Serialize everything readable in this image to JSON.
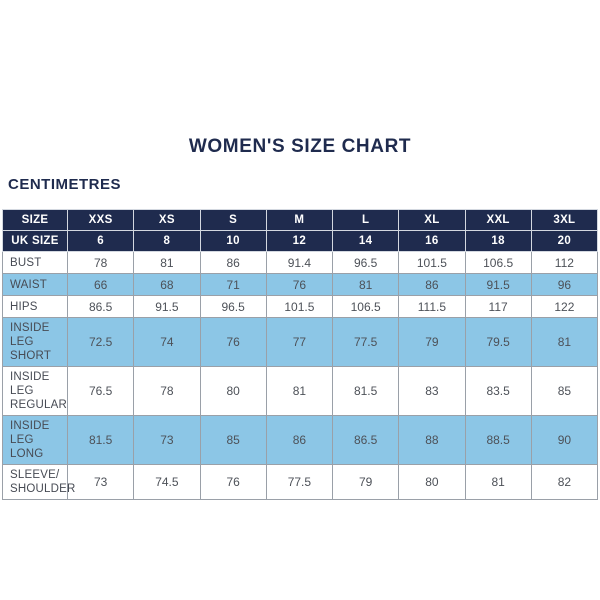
{
  "page": {
    "title": "WOMEN'S SIZE CHART",
    "unit_label": "CENTIMETRES"
  },
  "colors": {
    "header_navy": "#1f2b4e",
    "shaded_row_blue": "#8cc6e6",
    "body_border_gray": "#9aa0a8",
    "body_text_gray": "#4d5158",
    "header_text": "#ffffff",
    "background": "#ffffff"
  },
  "table": {
    "header_rows": [
      {
        "label": "SIZE",
        "values": [
          "XXS",
          "XS",
          "S",
          "M",
          "L",
          "XL",
          "XXL",
          "3XL"
        ]
      },
      {
        "label": "UK SIZE",
        "values": [
          "6",
          "8",
          "10",
          "12",
          "14",
          "16",
          "18",
          "20"
        ]
      }
    ],
    "rows": [
      {
        "label": "BUST",
        "label_lines": [
          "BUST"
        ],
        "shaded": false,
        "values": [
          "78",
          "81",
          "86",
          "91.4",
          "96.5",
          "101.5",
          "106.5",
          "112"
        ]
      },
      {
        "label": "WAIST",
        "label_lines": [
          "WAIST"
        ],
        "shaded": true,
        "values": [
          "66",
          "68",
          "71",
          "76",
          "81",
          "86",
          "91.5",
          "96"
        ]
      },
      {
        "label": "HIPS",
        "label_lines": [
          "HIPS"
        ],
        "shaded": false,
        "values": [
          "86.5",
          "91.5",
          "96.5",
          "101.5",
          "106.5",
          "111.5",
          "117",
          "122"
        ]
      },
      {
        "label": "INSIDE LEG SHORT",
        "label_lines": [
          "INSIDE LEG",
          "SHORT"
        ],
        "shaded": true,
        "values": [
          "72.5",
          "74",
          "76",
          "77",
          "77.5",
          "79",
          "79.5",
          "81"
        ]
      },
      {
        "label": "INSIDE LEG REGULAR",
        "label_lines": [
          "INSIDE LEG",
          "REGULAR"
        ],
        "shaded": false,
        "values": [
          "76.5",
          "78",
          "80",
          "81",
          "81.5",
          "83",
          "83.5",
          "85"
        ]
      },
      {
        "label": "INSIDE LEG LONG",
        "label_lines": [
          "INSIDE LEG",
          "LONG"
        ],
        "shaded": true,
        "values": [
          "81.5",
          "73",
          "85",
          "86",
          "86.5",
          "88",
          "88.5",
          "90"
        ]
      },
      {
        "label": "SLEEVE/ SHOULDER",
        "label_lines": [
          "SLEEVE/",
          "SHOULDER"
        ],
        "shaded": false,
        "values": [
          "73",
          "74.5",
          "76",
          "77.5",
          "79",
          "80",
          "81",
          "82"
        ]
      }
    ]
  }
}
